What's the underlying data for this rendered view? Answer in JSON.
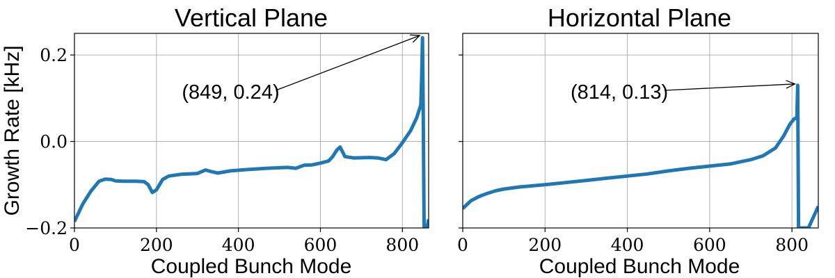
{
  "chart_data": [
    {
      "type": "line",
      "title": "Vertical Plane",
      "xlabel": "Coupled Bunch Mode",
      "ylabel": "Growth Rate [kHz]",
      "xlim": [
        0,
        864
      ],
      "ylim": [
        -0.2,
        0.25
      ],
      "xticks": [
        0,
        200,
        400,
        600,
        800
      ],
      "yticks": [
        -0.2,
        0.0,
        0.2
      ],
      "xtick_labels": [
        "0",
        "200",
        "400",
        "600",
        "800"
      ],
      "ytick_labels": [
        "−0.2",
        "0.0",
        "0.2"
      ],
      "show_y_tick_labels": true,
      "grid": true,
      "color": "#1f77b4",
      "series": [
        {
          "x": [
            0,
            20,
            40,
            60,
            75,
            90,
            100,
            120,
            150,
            170,
            180,
            190,
            200,
            215,
            230,
            260,
            300,
            320,
            335,
            350,
            380,
            420,
            470,
            520,
            540,
            560,
            580,
            600,
            620,
            630,
            640,
            648,
            660,
            680,
            720,
            740,
            760,
            780,
            800,
            820,
            835,
            845,
            847,
            849,
            851,
            853,
            855,
            860,
            864
          ],
          "y": [
            -0.185,
            -0.145,
            -0.115,
            -0.092,
            -0.087,
            -0.088,
            -0.091,
            -0.092,
            -0.092,
            -0.093,
            -0.1,
            -0.118,
            -0.112,
            -0.088,
            -0.08,
            -0.076,
            -0.074,
            -0.066,
            -0.07,
            -0.073,
            -0.068,
            -0.065,
            -0.062,
            -0.06,
            -0.062,
            -0.055,
            -0.054,
            -0.05,
            -0.045,
            -0.035,
            -0.02,
            -0.013,
            -0.035,
            -0.038,
            -0.037,
            -0.038,
            -0.042,
            -0.028,
            -0.003,
            0.025,
            0.055,
            0.085,
            0.15,
            0.24,
            0.05,
            -0.2,
            -0.2,
            -0.2,
            -0.18
          ]
        }
      ],
      "annotation": {
        "text": "(849, 0.24)",
        "text_x": 262,
        "text_y": 0.115,
        "point_x": 849,
        "point_y": 0.245
      }
    },
    {
      "type": "line",
      "title": "Horizontal Plane",
      "xlabel": "Coupled Bunch Mode",
      "ylabel": "",
      "xlim": [
        0,
        864
      ],
      "ylim": [
        -0.2,
        0.25
      ],
      "xticks": [
        0,
        200,
        400,
        600,
        800
      ],
      "yticks": [
        -0.2,
        0.0,
        0.2
      ],
      "xtick_labels": [
        "0",
        "200",
        "400",
        "600",
        "800"
      ],
      "ytick_labels": [],
      "show_y_tick_labels": false,
      "grid": true,
      "color": "#1f77b4",
      "series": [
        {
          "x": [
            0,
            20,
            40,
            60,
            80,
            100,
            140,
            200,
            250,
            300,
            350,
            400,
            450,
            500,
            550,
            600,
            650,
            700,
            730,
            760,
            780,
            795,
            805,
            812,
            814,
            816,
            818,
            820,
            840,
            864
          ],
          "y": [
            -0.155,
            -0.137,
            -0.127,
            -0.12,
            -0.114,
            -0.11,
            -0.105,
            -0.1,
            -0.095,
            -0.09,
            -0.085,
            -0.08,
            -0.075,
            -0.068,
            -0.062,
            -0.057,
            -0.052,
            -0.042,
            -0.033,
            -0.015,
            0.013,
            0.04,
            0.052,
            0.055,
            0.13,
            -0.2,
            -0.2,
            -0.2,
            -0.2,
            -0.15
          ]
        }
      ],
      "annotation": {
        "text": "(814, 0.13)",
        "text_x": 262,
        "text_y": 0.115,
        "point_x": 814,
        "point_y": 0.133
      }
    }
  ]
}
